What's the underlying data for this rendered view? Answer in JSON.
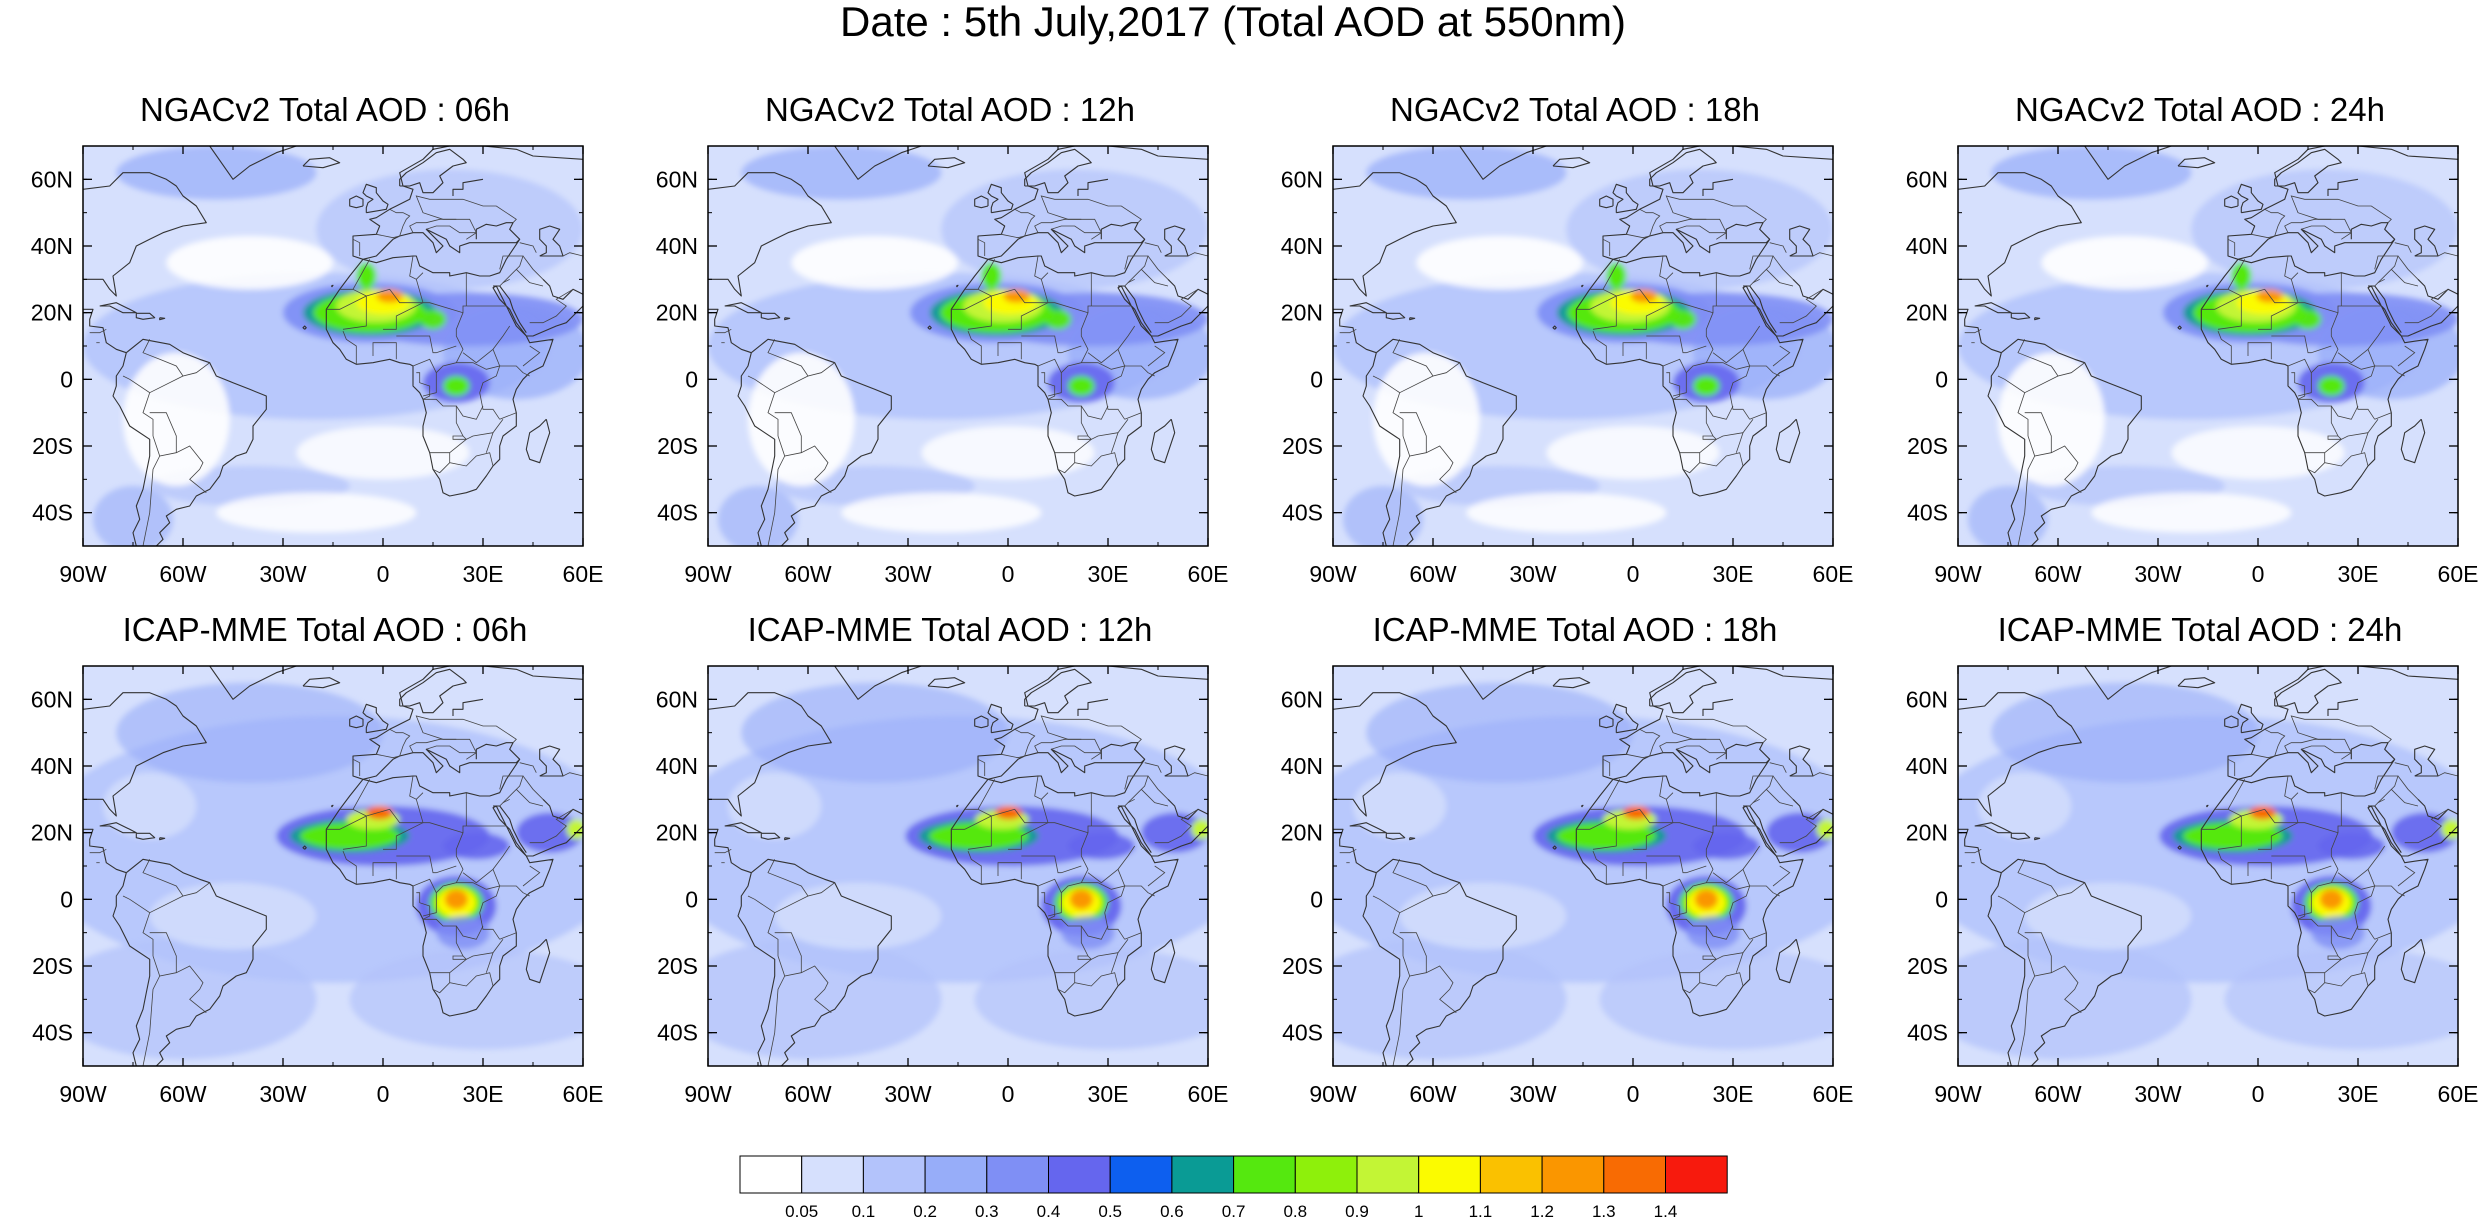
{
  "title": "Date : 5th July,2017 (Total AOD at 550nm)",
  "panels": [
    {
      "title": "NGACv2 Total AOD : 06h",
      "model": "NGACv2",
      "hour": "06h"
    },
    {
      "title": "NGACv2 Total AOD : 12h",
      "model": "NGACv2",
      "hour": "12h"
    },
    {
      "title": "NGACv2 Total AOD : 18h",
      "model": "NGACv2",
      "hour": "18h"
    },
    {
      "title": "NGACv2 Total AOD : 24h",
      "model": "NGACv2",
      "hour": "24h"
    },
    {
      "title": "ICAP-MME Total AOD : 06h",
      "model": "ICAP-MME",
      "hour": "06h"
    },
    {
      "title": "ICAP-MME Total AOD : 12h",
      "model": "ICAP-MME",
      "hour": "12h"
    },
    {
      "title": "ICAP-MME Total AOD : 18h",
      "model": "ICAP-MME",
      "hour": "18h"
    },
    {
      "title": "ICAP-MME Total AOD : 24h",
      "model": "ICAP-MME",
      "hour": "24h"
    }
  ],
  "axes": {
    "lon_labels": [
      "90W",
      "60W",
      "30W",
      "0",
      "30E",
      "60E"
    ],
    "lat_labels": [
      "60N",
      "40N",
      "20N",
      "0",
      "20S",
      "40S"
    ]
  },
  "colorbar": {
    "levels": [
      "0.05",
      "0.1",
      "0.2",
      "0.3",
      "0.4",
      "0.5",
      "0.6",
      "0.7",
      "0.8",
      "0.9",
      "1",
      "1.1",
      "1.2",
      "1.3",
      "1.4"
    ],
    "colors": [
      "#ffffff",
      "#d6e0fd",
      "#b3c3fb",
      "#97adf9",
      "#7f8ff5",
      "#6566ee",
      "#0d5fef",
      "#0a9b95",
      "#55e80f",
      "#8ef00b",
      "#c3f535",
      "#fbfb00",
      "#fac100",
      "#fa9600",
      "#f86b03",
      "#f71a0d"
    ]
  }
}
